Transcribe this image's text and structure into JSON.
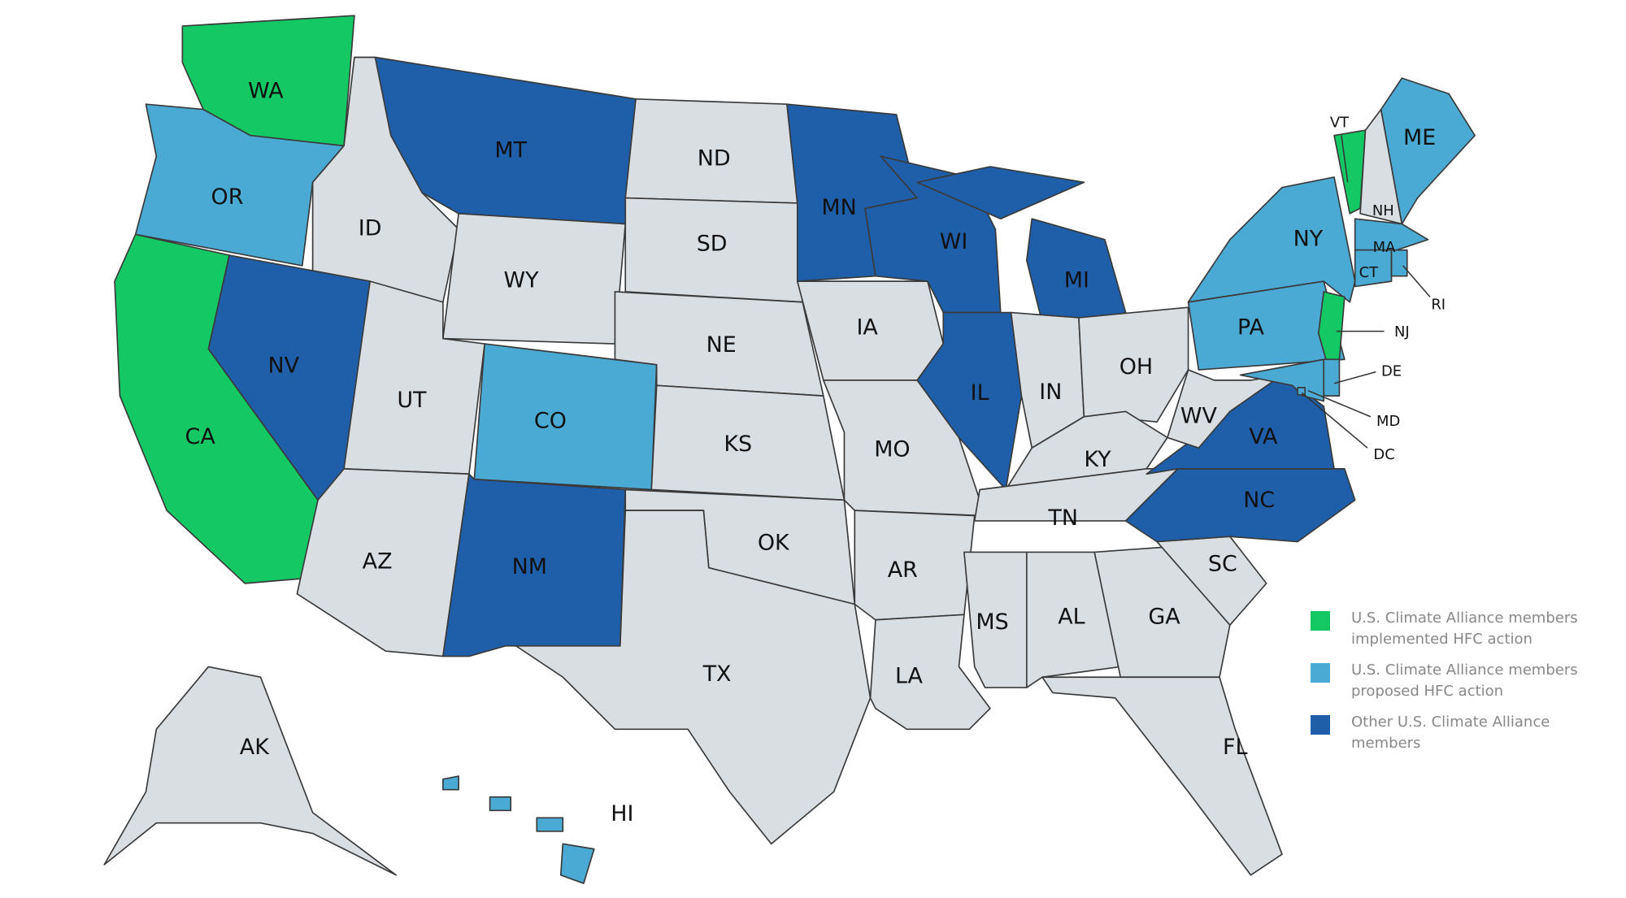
{
  "colors": {
    "implemented": "#14c964",
    "proposed": "#4aaad4",
    "other": "#1f5ea8",
    "none": "#d9dee2"
  },
  "states": [
    {
      "abbr": "WA",
      "cat": "implemented"
    },
    {
      "abbr": "OR",
      "cat": "proposed"
    },
    {
      "abbr": "CA",
      "cat": "implemented"
    },
    {
      "abbr": "ID",
      "cat": "none"
    },
    {
      "abbr": "NV",
      "cat": "other"
    },
    {
      "abbr": "MT",
      "cat": "other"
    },
    {
      "abbr": "WY",
      "cat": "none"
    },
    {
      "abbr": "UT",
      "cat": "none"
    },
    {
      "abbr": "CO",
      "cat": "proposed"
    },
    {
      "abbr": "AZ",
      "cat": "none"
    },
    {
      "abbr": "NM",
      "cat": "other"
    },
    {
      "abbr": "ND",
      "cat": "none"
    },
    {
      "abbr": "SD",
      "cat": "none"
    },
    {
      "abbr": "NE",
      "cat": "none"
    },
    {
      "abbr": "KS",
      "cat": "none"
    },
    {
      "abbr": "OK",
      "cat": "none"
    },
    {
      "abbr": "TX",
      "cat": "none"
    },
    {
      "abbr": "MN",
      "cat": "other"
    },
    {
      "abbr": "IA",
      "cat": "none"
    },
    {
      "abbr": "MO",
      "cat": "none"
    },
    {
      "abbr": "AR",
      "cat": "none"
    },
    {
      "abbr": "LA",
      "cat": "none"
    },
    {
      "abbr": "WI",
      "cat": "other"
    },
    {
      "abbr": "IL",
      "cat": "other"
    },
    {
      "abbr": "MI",
      "cat": "other"
    },
    {
      "abbr": "IN",
      "cat": "none"
    },
    {
      "abbr": "OH",
      "cat": "none"
    },
    {
      "abbr": "KY",
      "cat": "none"
    },
    {
      "abbr": "TN",
      "cat": "none"
    },
    {
      "abbr": "MS",
      "cat": "none"
    },
    {
      "abbr": "AL",
      "cat": "none"
    },
    {
      "abbr": "GA",
      "cat": "none"
    },
    {
      "abbr": "SC",
      "cat": "none"
    },
    {
      "abbr": "NC",
      "cat": "other"
    },
    {
      "abbr": "VA",
      "cat": "other"
    },
    {
      "abbr": "WV",
      "cat": "none"
    },
    {
      "abbr": "FL",
      "cat": "none"
    },
    {
      "abbr": "PA",
      "cat": "proposed"
    },
    {
      "abbr": "NY",
      "cat": "proposed"
    },
    {
      "abbr": "VT",
      "cat": "implemented"
    },
    {
      "abbr": "NH",
      "cat": "none"
    },
    {
      "abbr": "ME",
      "cat": "proposed"
    },
    {
      "abbr": "MA",
      "cat": "proposed"
    },
    {
      "abbr": "CT",
      "cat": "proposed"
    },
    {
      "abbr": "RI",
      "cat": "proposed"
    },
    {
      "abbr": "NJ",
      "cat": "implemented"
    },
    {
      "abbr": "DE",
      "cat": "proposed"
    },
    {
      "abbr": "MD",
      "cat": "proposed"
    },
    {
      "abbr": "DC",
      "cat": "proposed"
    },
    {
      "abbr": "AK",
      "cat": "none"
    },
    {
      "abbr": "HI",
      "cat": "proposed"
    }
  ],
  "legend": [
    {
      "cat": "implemented",
      "label": "U.S. Climate Alliance members implemented HFC action"
    },
    {
      "cat": "proposed",
      "label": "U.S. Climate Alliance members proposed HFC action"
    },
    {
      "cat": "other",
      "label": "Other U.S. Climate Alliance members"
    }
  ]
}
